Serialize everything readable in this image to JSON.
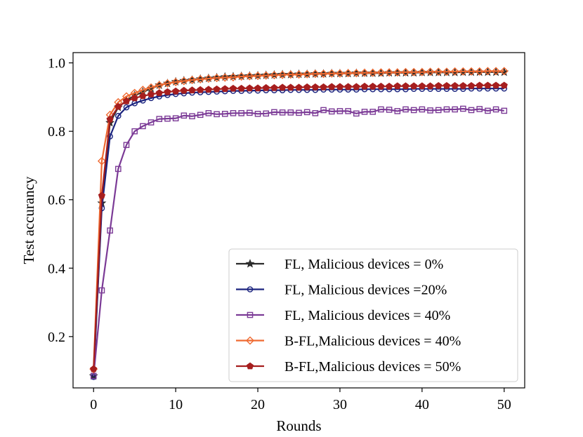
{
  "chart_data": {
    "type": "line",
    "title": "",
    "xlabel": "Rounds",
    "ylabel": "Test accurancy",
    "xlim": [
      -2.5,
      52.5
    ],
    "ylim": [
      0.05,
      1.03
    ],
    "x_ticks": [
      0,
      10,
      20,
      30,
      40,
      50
    ],
    "y_ticks": [
      0.2,
      0.4,
      0.6,
      0.8,
      1.0
    ],
    "x_tick_labels": [
      "0",
      "10",
      "20",
      "30",
      "40",
      "50"
    ],
    "y_tick_labels": [
      "0.2",
      "0.4",
      "0.6",
      "0.8",
      "1.0"
    ],
    "grid": false,
    "legend_position": "lower-right",
    "x": [
      0,
      1,
      2,
      3,
      4,
      5,
      6,
      7,
      8,
      9,
      10,
      11,
      12,
      13,
      14,
      15,
      16,
      17,
      18,
      19,
      20,
      21,
      22,
      23,
      24,
      25,
      26,
      27,
      28,
      29,
      30,
      31,
      32,
      33,
      34,
      35,
      36,
      37,
      38,
      39,
      40,
      41,
      42,
      43,
      44,
      45,
      46,
      47,
      48,
      49,
      50
    ],
    "series": [
      {
        "name": "FL, Malicious devices = 0%",
        "color": "#2b2b2b",
        "marker": "star",
        "values": [
          0.085,
          0.59,
          0.825,
          0.87,
          0.89,
          0.905,
          0.915,
          0.925,
          0.935,
          0.94,
          0.945,
          0.948,
          0.95,
          0.953,
          0.955,
          0.957,
          0.959,
          0.96,
          0.961,
          0.962,
          0.963,
          0.964,
          0.965,
          0.966,
          0.966,
          0.967,
          0.967,
          0.968,
          0.968,
          0.969,
          0.969,
          0.969,
          0.97,
          0.97,
          0.97,
          0.97,
          0.971,
          0.971,
          0.971,
          0.971,
          0.972,
          0.972,
          0.972,
          0.972,
          0.972,
          0.973,
          0.973,
          0.973,
          0.973,
          0.973,
          0.973
        ]
      },
      {
        "name": "FL, Malicious devices =20%",
        "color": "#1a237e",
        "marker": "circle",
        "values": [
          0.082,
          0.575,
          0.785,
          0.845,
          0.87,
          0.882,
          0.89,
          0.897,
          0.902,
          0.906,
          0.909,
          0.911,
          0.913,
          0.914,
          0.915,
          0.916,
          0.917,
          0.918,
          0.918,
          0.919,
          0.919,
          0.92,
          0.92,
          0.92,
          0.921,
          0.921,
          0.921,
          0.921,
          0.922,
          0.922,
          0.922,
          0.922,
          0.922,
          0.923,
          0.923,
          0.923,
          0.923,
          0.923,
          0.923,
          0.924,
          0.924,
          0.924,
          0.924,
          0.924,
          0.924,
          0.924,
          0.925,
          0.925,
          0.925,
          0.925,
          0.925
        ]
      },
      {
        "name": "FL, Malicious devices = 40%",
        "color": "#7b3a96",
        "marker": "square",
        "values": [
          0.085,
          0.335,
          0.51,
          0.69,
          0.76,
          0.8,
          0.815,
          0.826,
          0.836,
          0.837,
          0.838,
          0.846,
          0.844,
          0.848,
          0.853,
          0.85,
          0.851,
          0.853,
          0.853,
          0.854,
          0.851,
          0.852,
          0.856,
          0.855,
          0.855,
          0.854,
          0.856,
          0.853,
          0.862,
          0.858,
          0.859,
          0.859,
          0.852,
          0.857,
          0.857,
          0.864,
          0.863,
          0.859,
          0.864,
          0.862,
          0.864,
          0.861,
          0.862,
          0.864,
          0.864,
          0.866,
          0.862,
          0.865,
          0.86,
          0.864,
          0.86
        ]
      },
      {
        "name": "B-FL,Malicious devices = 40%",
        "color": "#ef6a32",
        "marker": "diamond",
        "values": [
          0.105,
          0.713,
          0.848,
          0.885,
          0.902,
          0.912,
          0.921,
          0.928,
          0.935,
          0.94,
          0.944,
          0.947,
          0.95,
          0.952,
          0.954,
          0.956,
          0.957,
          0.958,
          0.96,
          0.961,
          0.962,
          0.963,
          0.964,
          0.965,
          0.966,
          0.966,
          0.967,
          0.968,
          0.968,
          0.969,
          0.969,
          0.97,
          0.97,
          0.971,
          0.971,
          0.972,
          0.972,
          0.972,
          0.973,
          0.973,
          0.973,
          0.974,
          0.974,
          0.974,
          0.975,
          0.975,
          0.975,
          0.975,
          0.976,
          0.976,
          0.976
        ]
      },
      {
        "name": "B-FL,Malicious devices = 50%",
        "color": "#a61e1e",
        "marker": "pentagon",
        "values": [
          0.105,
          0.612,
          0.835,
          0.872,
          0.888,
          0.897,
          0.903,
          0.908,
          0.912,
          0.915,
          0.917,
          0.919,
          0.92,
          0.921,
          0.922,
          0.923,
          0.924,
          0.925,
          0.925,
          0.926,
          0.926,
          0.927,
          0.927,
          0.928,
          0.928,
          0.928,
          0.929,
          0.929,
          0.929,
          0.93,
          0.93,
          0.93,
          0.93,
          0.931,
          0.931,
          0.931,
          0.931,
          0.932,
          0.932,
          0.932,
          0.932,
          0.932,
          0.933,
          0.933,
          0.933,
          0.933,
          0.933,
          0.934,
          0.934,
          0.934,
          0.934
        ]
      }
    ]
  }
}
